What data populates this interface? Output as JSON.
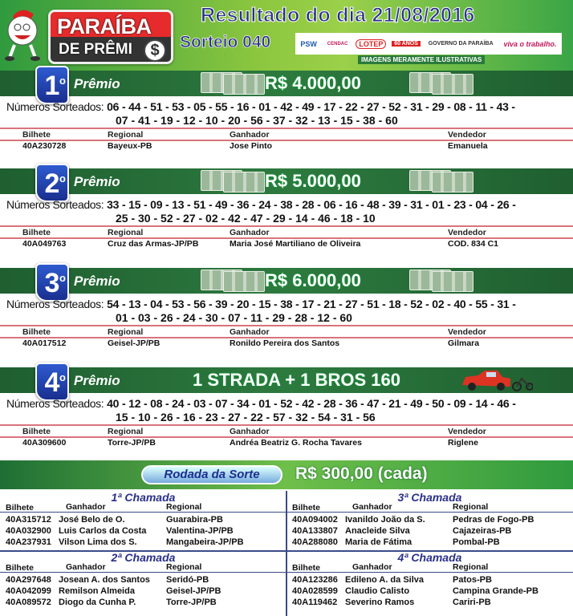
{
  "header": {
    "logo_line1": "PARAÍBA",
    "logo_line2": "DE PRÊMI",
    "logo_coin": "$",
    "title": "Resultado do dia 21/08/2016",
    "sorteio": "Sorteio 040",
    "sponsors": [
      "PSW",
      "CENDAC",
      "LOTEP",
      "60 ANOS",
      "GOVERNO DA PARAÍBA",
      "viva o trabalho."
    ],
    "disclaimer": "IMAGENS MERAMENTE ILUSTRATIVAS"
  },
  "prize_label": "Prêmio",
  "numbers_label": "Números Sorteados:",
  "columns": {
    "bilhete": "Bilhete",
    "regional": "Regional",
    "ganhador": "Ganhador",
    "vendedor": "Vendedor"
  },
  "prizes": [
    {
      "ordinal": "1",
      "amount": "R$ 4.000,00",
      "line1": "06 - 44 - 51 - 53 - 05 - 55 - 16 - 01 - 42 - 49 - 17 - 22 - 27 - 52 - 31 - 29 - 08 - 11 - 43 -",
      "line2": "07 - 41 - 19 - 12 - 10 - 20 - 56 - 37 - 32 - 13 - 15 - 38 - 60",
      "bilhete": "40A230728",
      "regional": "Bayeux-PB",
      "ganhador": "Jose Pinto",
      "vendedor": "Emanuela"
    },
    {
      "ordinal": "2",
      "amount": "R$ 5.000,00",
      "line1": "33 - 15 - 09 - 13 - 51 - 49 - 36 - 24 - 38 - 28 - 06 - 16 - 48 - 39 - 31 - 01 - 23 - 04 - 26 -",
      "line2": "25 - 30 - 52 - 27 - 02 - 42 - 47 - 29 - 14 - 46 - 18 - 10",
      "bilhete": "40A049763",
      "regional": "Cruz das Armas-JP/PB",
      "ganhador": "Maria José Martiliano de Oliveira",
      "vendedor": "COD. 834 C1"
    },
    {
      "ordinal": "3",
      "amount": "R$ 6.000,00",
      "line1": "54 - 13 - 04 - 53 - 56 - 39 - 20 - 15 - 38 - 17 - 21 - 27 - 51 - 18 - 52 - 02 - 40 - 55 - 31 -",
      "line2": "01 - 03 - 26 - 24 - 30 - 07 - 11 - 29 - 28 - 12 - 60",
      "bilhete": "40A017512",
      "regional": "Geisel-JP/PB",
      "ganhador": "Ronildo Pereira dos Santos",
      "vendedor": "Gilmara"
    },
    {
      "ordinal": "4",
      "amount": "1 STRADA + 1 BROS 160",
      "line1": "40 - 12 - 08 - 24 - 03 - 07 - 34 - 01 - 52 - 42 - 28 - 36 - 47 - 21 - 49 - 50 - 09 - 14 - 46 -",
      "line2": "15 - 10 - 26 - 16 - 23 - 27 - 22 - 57 - 32 - 54 - 31 - 56",
      "bilhete": "40A309600",
      "regional": "Torre-JP/PB",
      "ganhador": "Andréa Beatriz G. Rocha Tavares",
      "vendedor": "Riglene"
    }
  ],
  "rodada": {
    "logo": "Rodada da Sorte",
    "amount": "R$ 300,00 (cada)",
    "columns": {
      "bilhete": "Bilhete",
      "ganhador": "Ganhador",
      "regional": "Regional"
    },
    "chamadas": [
      {
        "title": "1ª Chamada",
        "rows": [
          [
            "40A315712",
            "José Belo de O.",
            "Guarabira-PB"
          ],
          [
            "40A032900",
            "Luis Carlos da Costa",
            "Valentina-JP/PB"
          ],
          [
            "40A237931",
            "Vilson Lima dos S.",
            "Mangabeira-JP/PB"
          ]
        ]
      },
      {
        "title": "3ª Chamada",
        "rows": [
          [
            "40A094002",
            "Ivanildo João da S.",
            "Pedras de Fogo-PB"
          ],
          [
            "40A133807",
            "Anacleide Silva",
            "Cajazeiras-PB"
          ],
          [
            "40A288080",
            "Maria de Fátima",
            "Pombal-PB"
          ]
        ]
      },
      {
        "title": "2ª Chamada",
        "rows": [
          [
            "40A297648",
            "Josean A. dos Santos",
            "Seridó-PB"
          ],
          [
            "40A042099",
            "Remilson Almeida",
            "Geisel-JP/PB"
          ],
          [
            "40A089572",
            "Diogo da Cunha P.",
            "Torre-JP/PB"
          ]
        ]
      },
      {
        "title": "4ª Chamada",
        "rows": [
          [
            "40A123286",
            "Edileno A. da Silva",
            "Patos-PB"
          ],
          [
            "40A028599",
            "Claudio Calisto",
            "Campina Grande-PB"
          ],
          [
            "40A119462",
            "Severino Ramos",
            "Cariri-PB"
          ]
        ]
      }
    ]
  },
  "colors": {
    "header_green": "#8cc63f",
    "band_green": "#2d7a3f",
    "badge_blue": "#1a2f8f",
    "title_navy": "#2a2f8a",
    "divider_red": "#d8737c"
  }
}
